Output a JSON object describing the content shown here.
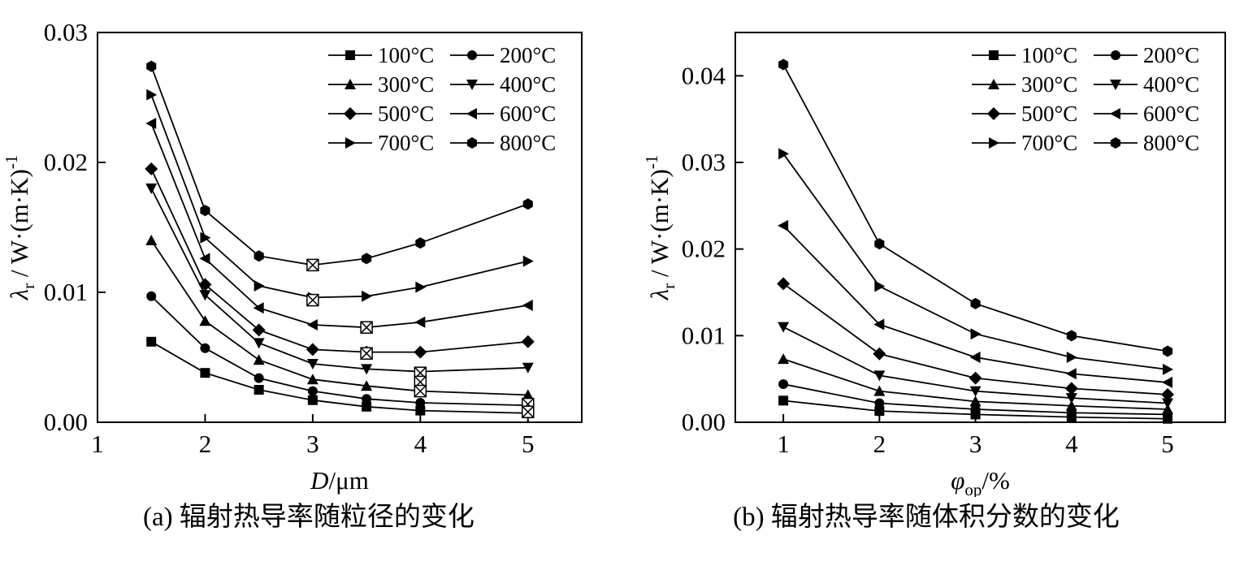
{
  "page": {
    "background": "#ffffff",
    "line_color": "#000000"
  },
  "chart_data": [
    {
      "type": "line",
      "panel": "a",
      "caption": "(a) 辐射热导率随粒径的变化",
      "xlabel": [
        {
          "text": "D",
          "italic": true
        },
        {
          "text": "/μm"
        }
      ],
      "ylabel": [
        {
          "text": "λ",
          "italic": true
        },
        {
          "text": "r",
          "script": "sub"
        },
        {
          "text": " / W·(m·K)"
        },
        {
          "text": "-1",
          "script": "sup"
        }
      ],
      "xlim": [
        1,
        5.5
      ],
      "ylim": [
        0,
        0.03
      ],
      "grid": false,
      "legend_position": "top-right",
      "xticks": {
        "values": [
          1,
          2,
          3,
          4,
          5
        ],
        "labels": [
          "1",
          "2",
          "3",
          "4",
          "5"
        ]
      },
      "yticks": {
        "values": [
          0,
          0.01,
          0.02,
          0.03
        ],
        "labels": [
          "0.00",
          "0.01",
          "0.02",
          "0.03"
        ]
      },
      "x": [
        1.5,
        2,
        2.5,
        3,
        3.5,
        4,
        5
      ],
      "series": [
        {
          "name": "100°C",
          "marker": "square",
          "values": [
            0.0062,
            0.0038,
            0.0025,
            0.0017,
            0.0012,
            0.0009,
            0.0007
          ]
        },
        {
          "name": "200°C",
          "marker": "circle",
          "values": [
            0.0097,
            0.0057,
            0.0034,
            0.0024,
            0.0018,
            0.0015,
            0.0013
          ]
        },
        {
          "name": "300°C",
          "marker": "triangle-up",
          "values": [
            0.014,
            0.0078,
            0.0048,
            0.0033,
            0.0028,
            0.0024,
            0.0021
          ]
        },
        {
          "name": "400°C",
          "marker": "triangle-down",
          "values": [
            0.018,
            0.0098,
            0.0061,
            0.0045,
            0.0041,
            0.0039,
            0.0042
          ]
        },
        {
          "name": "500°C",
          "marker": "diamond",
          "values": [
            0.0195,
            0.0106,
            0.0071,
            0.0056,
            0.0054,
            0.0054,
            0.0062
          ]
        },
        {
          "name": "600°C",
          "marker": "triangle-left",
          "values": [
            0.023,
            0.0126,
            0.0088,
            0.0075,
            0.0073,
            0.0077,
            0.009
          ]
        },
        {
          "name": "700°C",
          "marker": "triangle-right",
          "values": [
            0.0252,
            0.0142,
            0.0105,
            0.0096,
            0.0097,
            0.0104,
            0.0124
          ]
        },
        {
          "name": "800°C",
          "marker": "hexagon",
          "values": [
            0.0274,
            0.0163,
            0.0128,
            0.0121,
            0.0126,
            0.0138,
            0.0168
          ]
        }
      ],
      "extra_markers": {
        "marker": "square-cross",
        "points": [
          [
            3,
            0.0121
          ],
          [
            3,
            0.0094
          ],
          [
            3.5,
            0.0073
          ],
          [
            3.5,
            0.0053
          ],
          [
            4,
            0.0038
          ],
          [
            4,
            0.0031
          ],
          [
            4,
            0.0024
          ],
          [
            5,
            0.0014
          ],
          [
            5,
            0.0008
          ]
        ]
      }
    },
    {
      "type": "line",
      "panel": "b",
      "caption": "(b) 辐射热导率随体积分数的变化",
      "xlabel": [
        {
          "text": "φ",
          "italic": true
        },
        {
          "text": "op",
          "script": "sub"
        },
        {
          "text": "/%"
        }
      ],
      "ylabel": [
        {
          "text": "λ",
          "italic": true
        },
        {
          "text": "r",
          "script": "sub"
        },
        {
          "text": " / W·(m·K)"
        },
        {
          "text": "-1",
          "script": "sup"
        }
      ],
      "xlim": [
        0.5,
        5.6
      ],
      "ylim": [
        0,
        0.045
      ],
      "grid": false,
      "legend_position": "top-right",
      "xticks": {
        "values": [
          1,
          2,
          3,
          4,
          5
        ],
        "labels": [
          "1",
          "2",
          "3",
          "4",
          "5"
        ]
      },
      "yticks": {
        "values": [
          0,
          0.01,
          0.02,
          0.03,
          0.04
        ],
        "labels": [
          "0.00",
          "0.01",
          "0.02",
          "0.03",
          "0.04"
        ]
      },
      "x": [
        1,
        2,
        3,
        4,
        5
      ],
      "series": [
        {
          "name": "100°C",
          "marker": "square",
          "values": [
            0.0025,
            0.0013,
            0.0009,
            0.0006,
            0.0004
          ]
        },
        {
          "name": "200°C",
          "marker": "circle",
          "values": [
            0.0044,
            0.0022,
            0.0015,
            0.0011,
            0.0009
          ]
        },
        {
          "name": "300°C",
          "marker": "triangle-up",
          "values": [
            0.0073,
            0.0036,
            0.0024,
            0.0019,
            0.0015
          ]
        },
        {
          "name": "400°C",
          "marker": "triangle-down",
          "values": [
            0.011,
            0.0054,
            0.0036,
            0.0028,
            0.0022
          ]
        },
        {
          "name": "500°C",
          "marker": "diamond",
          "values": [
            0.016,
            0.0079,
            0.0051,
            0.0039,
            0.0032
          ]
        },
        {
          "name": "600°C",
          "marker": "triangle-left",
          "values": [
            0.0227,
            0.0113,
            0.0075,
            0.0056,
            0.0046
          ]
        },
        {
          "name": "700°C",
          "marker": "triangle-right",
          "values": [
            0.031,
            0.0157,
            0.0102,
            0.0075,
            0.0061
          ]
        },
        {
          "name": "800°C",
          "marker": "hexagon",
          "values": [
            0.0413,
            0.0206,
            0.0137,
            0.01,
            0.0082
          ]
        }
      ]
    }
  ]
}
